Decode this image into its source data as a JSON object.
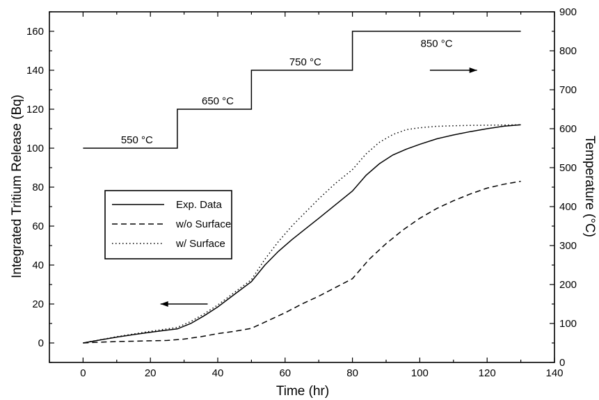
{
  "chart_data": {
    "type": "line",
    "xlabel": "Time (hr)",
    "ylabel": "Integrated Tritium Release (Bq)",
    "y2label": "Temperature (°C)",
    "xlim": [
      -10,
      140
    ],
    "ylim": [
      -10,
      170
    ],
    "y2lim": [
      0,
      900
    ],
    "x_ticks": [
      0,
      20,
      40,
      60,
      80,
      100,
      120,
      140
    ],
    "y_ticks": [
      0,
      20,
      40,
      60,
      80,
      100,
      120,
      140,
      160
    ],
    "y2_ticks": [
      0,
      100,
      200,
      300,
      400,
      500,
      600,
      700,
      800,
      900
    ],
    "grid": false,
    "legend_position": "middle-left",
    "series": [
      {
        "name": "Exp. Data",
        "style": "solid",
        "axis": "left",
        "x": [
          0,
          5,
          10,
          15,
          20,
          25,
          28,
          32,
          36,
          40,
          45,
          50,
          54,
          58,
          62,
          66,
          70,
          75,
          80,
          84,
          88,
          92,
          96,
          100,
          105,
          110,
          115,
          120,
          125,
          130
        ],
        "y": [
          0,
          1.5,
          3,
          4.3,
          5.5,
          6.6,
          7.2,
          10,
          14,
          18.5,
          25,
          31.5,
          40,
          47,
          53,
          58.5,
          64,
          71,
          78,
          86,
          92,
          96.5,
          99.5,
          102,
          104.8,
          106.8,
          108.5,
          110,
          111.3,
          112
        ]
      },
      {
        "name": "w/o Surface",
        "style": "dashed",
        "axis": "left",
        "x": [
          0,
          5,
          10,
          15,
          20,
          25,
          30,
          35,
          40,
          45,
          50,
          55,
          60,
          65,
          70,
          75,
          80,
          85,
          90,
          95,
          100,
          105,
          110,
          115,
          120,
          125,
          130
        ],
        "y": [
          0,
          0.4,
          0.7,
          0.9,
          1.1,
          1.3,
          2,
          3.2,
          4.8,
          6,
          7.5,
          11.5,
          15.5,
          20,
          24,
          28.5,
          33,
          43,
          51,
          58,
          64,
          69,
          73,
          76.5,
          79.5,
          81.5,
          83
        ]
      },
      {
        "name": "w/ Surface",
        "style": "dotted",
        "axis": "left",
        "x": [
          0,
          5,
          10,
          15,
          20,
          25,
          28,
          32,
          36,
          40,
          45,
          50,
          54,
          58,
          62,
          66,
          70,
          75,
          80,
          84,
          88,
          92,
          96,
          100,
          105,
          110,
          115,
          120,
          125,
          130
        ],
        "y": [
          0,
          1.6,
          3.2,
          4.6,
          6,
          7.2,
          8,
          11,
          15,
          19.5,
          26,
          32.5,
          43,
          52,
          60,
          67,
          74,
          82,
          89,
          97,
          103,
          107,
          109.5,
          110.5,
          111.2,
          111.5,
          111.7,
          111.8,
          111.9,
          112
        ]
      },
      {
        "name": "Temperature",
        "style": "solid",
        "axis": "right",
        "x": [
          0,
          28,
          28,
          50,
          50,
          80,
          80,
          130
        ],
        "y": [
          550,
          550,
          650,
          650,
          750,
          750,
          850,
          850
        ]
      }
    ],
    "annotations": [
      {
        "text": "550 °C",
        "x": 16,
        "y": 102.5
      },
      {
        "text": "650 °C",
        "x": 40,
        "y": 122.5
      },
      {
        "text": "750 °C",
        "x": 66,
        "y": 142.5
      },
      {
        "text": "850 °C",
        "x": 105,
        "y": 152
      }
    ],
    "arrows": [
      {
        "from": [
          37,
          20
        ],
        "to": [
          23,
          20
        ]
      },
      {
        "from": [
          103,
          140
        ],
        "to": [
          117,
          140
        ]
      }
    ]
  }
}
